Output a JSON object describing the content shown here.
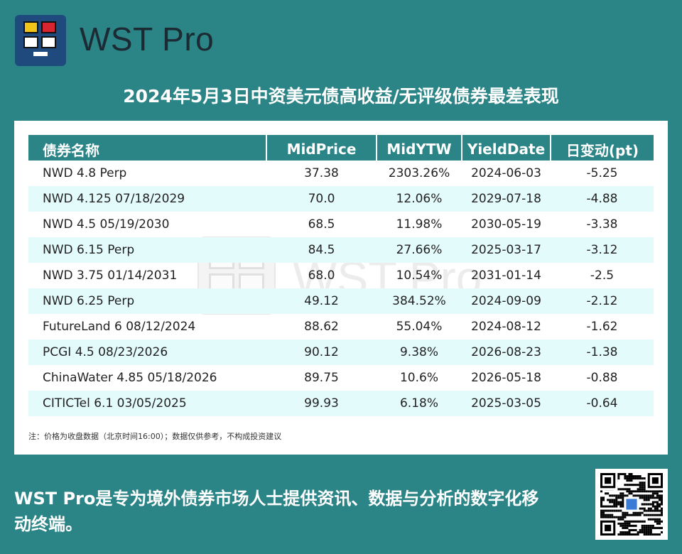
{
  "brand": {
    "name": "WST Pro",
    "watermark": "WST Pro"
  },
  "title": "2024年5月3日中资美元债高收益/无评级债券最差表现",
  "table": {
    "headers": [
      "债券名称",
      "MidPrice",
      "MidYTW",
      "YieldDate",
      "日变动(pt)"
    ],
    "rows": [
      {
        "name": "NWD 4.8 Perp",
        "price": "37.38",
        "ytw": "2303.26%",
        "date": "2024-06-03",
        "change": "-5.25"
      },
      {
        "name": "NWD 4.125 07/18/2029",
        "price": "70.0",
        "ytw": "12.06%",
        "date": "2029-07-18",
        "change": "-4.88"
      },
      {
        "name": "NWD 4.5 05/19/2030",
        "price": "68.5",
        "ytw": "11.98%",
        "date": "2030-05-19",
        "change": "-3.38"
      },
      {
        "name": "NWD 6.15 Perp",
        "price": "84.5",
        "ytw": "27.66%",
        "date": "2025-03-17",
        "change": "-3.12"
      },
      {
        "name": "NWD 3.75 01/14/2031",
        "price": "68.0",
        "ytw": "10.54%",
        "date": "2031-01-14",
        "change": "-2.5"
      },
      {
        "name": "NWD 6.25 Perp",
        "price": "49.12",
        "ytw": "384.52%",
        "date": "2024-09-09",
        "change": "-2.12"
      },
      {
        "name": "FutureLand 6 08/12/2024",
        "price": "88.62",
        "ytw": "55.04%",
        "date": "2024-08-12",
        "change": "-1.62"
      },
      {
        "name": "PCGI 4.5 08/23/2026",
        "price": "90.12",
        "ytw": "9.38%",
        "date": "2026-08-23",
        "change": "-1.38"
      },
      {
        "name": "ChinaWater 4.85 05/18/2026",
        "price": "89.75",
        "ytw": "10.6%",
        "date": "2026-05-18",
        "change": "-0.88"
      },
      {
        "name": "CITICTel 6.1 03/05/2025",
        "price": "99.93",
        "ytw": "6.18%",
        "date": "2025-03-05",
        "change": "-0.64"
      }
    ]
  },
  "note": "注：价格为收盘数据（北京时间16:00）；数据仅供参考，不构成投资建议",
  "tagline": "WST Pro是专为境外债券市场人士提供资讯、数据与分析的数字化移动终端。",
  "colors": {
    "background": "#2b8486",
    "header": "#2b8486",
    "row_alt": "#e4fbfc"
  },
  "icons": {
    "logo": "monitor-logo-icon",
    "qr": "qr-code-icon"
  }
}
